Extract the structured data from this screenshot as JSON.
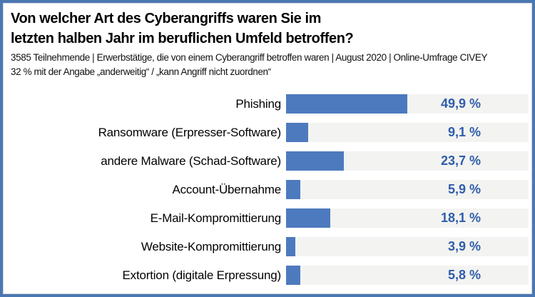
{
  "frame": {
    "border_color": "#4b77b2",
    "background_color": "#ffffff"
  },
  "header": {
    "title": "Von welcher Art des Cyberangriffs waren Sie im\nletzten halben Jahr im beruflichen Umfeld betroffen?",
    "subtitle_line1": "3585 Teilnehmende | Erwerbstätige, die von einem Cyberangriff betroffen waren | August 2020 | Online-Umfrage CIVEY",
    "subtitle_line2": "32 % mit der Angabe „anderweitig“ /  „kann Angriff nicht zuordnen“"
  },
  "chart_data": {
    "type": "bar",
    "orientation": "horizontal",
    "title": "Von welcher Art des Cyberangriffs waren Sie im letzten halben Jahr im beruflichen Umfeld betroffen?",
    "categories": [
      "Phishing",
      "Ransomware (Erpresser-Software)",
      "andere Malware (Schad-Software)",
      "Account-Übernahme",
      "E-Mail-Kompromittierung",
      "Website-Kompromittierung",
      "Extortion (digitale Erpressung)"
    ],
    "values": [
      49.9,
      9.1,
      23.7,
      5.9,
      18.1,
      3.9,
      5.8
    ],
    "value_labels": [
      "49,9 %",
      "9,1 %",
      "23,7 %",
      "5,9 %",
      "18,1 %",
      "3,9 %",
      "5,8 %"
    ],
    "xlim": [
      0,
      100
    ],
    "grid": false,
    "legend": false,
    "bar_color": "#4d7abe",
    "track_color": "#f3f3f1",
    "value_text_color": "#2f5dab"
  }
}
